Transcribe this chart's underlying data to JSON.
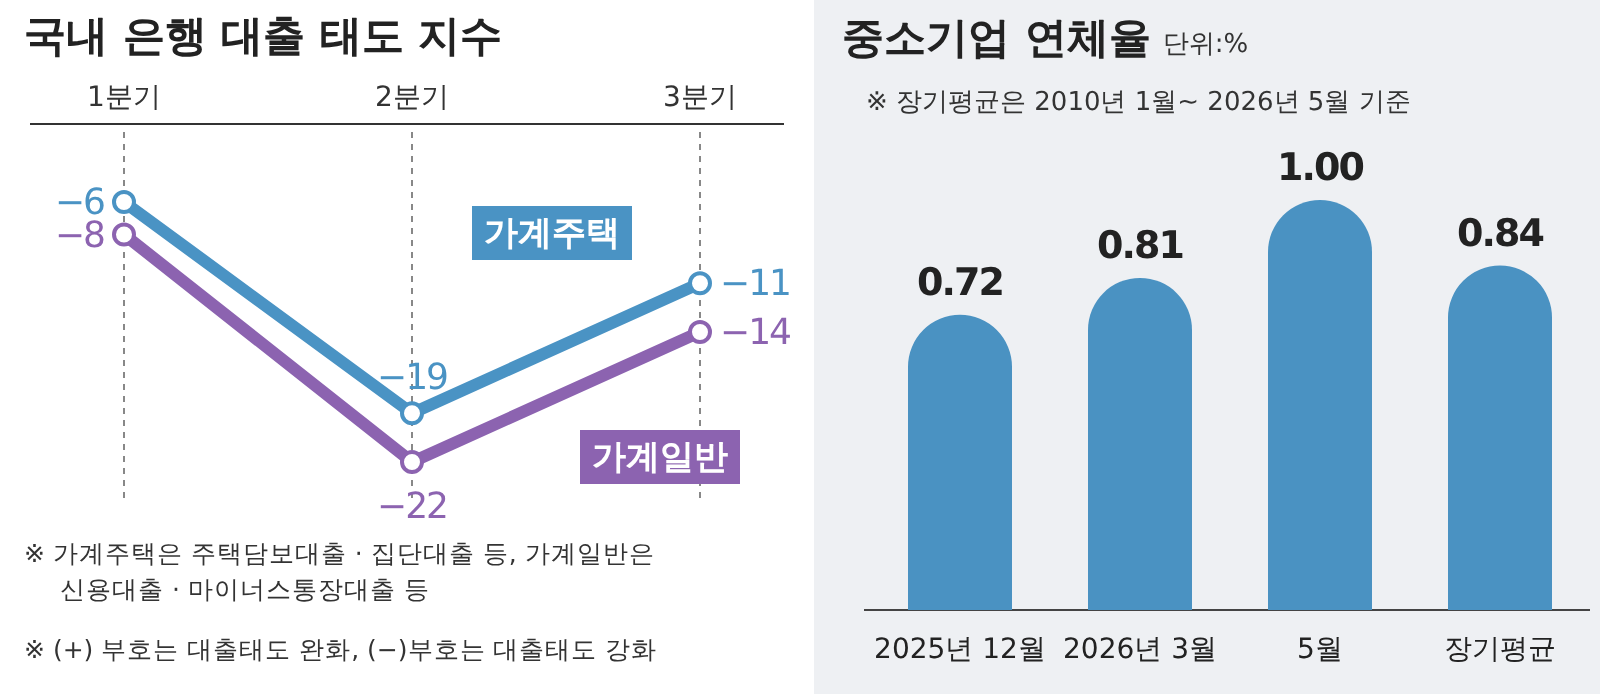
{
  "chart_data": [
    {
      "type": "line",
      "title": "국내 은행 대출 태도 지수",
      "categories": [
        "1분기",
        "2분기",
        "3분기"
      ],
      "series": [
        {
          "name": "가계주택",
          "color": "#4a93c4",
          "values": [
            -6,
            -19,
            -11
          ]
        },
        {
          "name": "가계일반",
          "color": "#8c63b0",
          "values": [
            -8,
            -22,
            -14
          ]
        }
      ],
      "data_labels": true,
      "marker": "circle",
      "grid": "x",
      "annotations": [
        "※ 가계주택은 주택담보대출 · 집단대출 등, 가계일반은 신용대출 · 마이너스통장대출 등",
        "※ (+) 부호는 대출태도 완화, (−)부호는 대출태도 강화"
      ]
    },
    {
      "type": "bar",
      "title": "중소기업 연체율",
      "subtitle": "※ 장기평균은 2010년 1월~ 2026년 5월 기준",
      "annotations": [
        "단위:%"
      ],
      "categories": [
        "2025년 12월",
        "2026년 3월",
        "5월",
        "장기평균"
      ],
      "values": [
        0.72,
        0.81,
        1.0,
        0.84
      ],
      "color": "#4a92c2",
      "value_labels": [
        "0.72",
        "0.81",
        "1.00",
        "0.84"
      ]
    }
  ]
}
